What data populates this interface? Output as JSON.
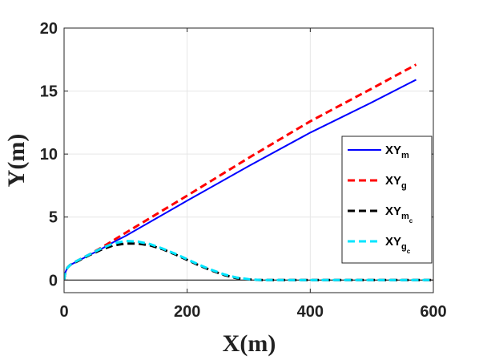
{
  "chart_data": {
    "type": "line",
    "xlabel": "X(m)",
    "ylabel": "Y(m)",
    "xlim": [
      0,
      600
    ],
    "ylim": [
      -1,
      20
    ],
    "xticks": [
      "0",
      "200",
      "400",
      "600"
    ],
    "yticks": [
      "0",
      "5",
      "10",
      "15",
      "20"
    ],
    "grid": true,
    "legend_position": "right",
    "series": [
      {
        "name": "XY_m",
        "legend": {
          "base": "XY",
          "sub": "m"
        },
        "color": "#0000ff",
        "dash": "solid",
        "x": [
          0,
          2,
          5,
          10,
          20,
          40,
          60,
          80,
          100,
          200,
          300,
          400,
          500,
          572
        ],
        "y": [
          0,
          0.6,
          0.95,
          1.2,
          1.45,
          1.95,
          2.45,
          3.0,
          3.5,
          6.3,
          9.05,
          11.7,
          14.1,
          15.9
        ]
      },
      {
        "name": "XY_g",
        "legend": {
          "base": "XY",
          "sub": "g"
        },
        "color": "#ff0000",
        "dash": "dashed",
        "x": [
          0,
          2,
          5,
          10,
          20,
          40,
          60,
          80,
          100,
          200,
          300,
          400,
          500,
          572
        ],
        "y": [
          0,
          0.6,
          0.95,
          1.2,
          1.5,
          2.0,
          2.55,
          3.15,
          3.75,
          6.7,
          9.7,
          12.6,
          15.2,
          17.1
        ]
      },
      {
        "name": "XY_m_c",
        "legend": {
          "base": "XY",
          "sub": "m",
          "subsub": "c"
        },
        "color": "#000000",
        "dash": "dashed",
        "x": [
          0,
          2,
          5,
          10,
          20,
          40,
          60,
          80,
          100,
          120,
          140,
          160,
          180,
          200,
          220,
          240,
          260,
          280,
          300,
          320,
          340,
          360,
          400,
          500,
          600
        ],
        "y": [
          0,
          0.6,
          0.95,
          1.2,
          1.45,
          1.95,
          2.4,
          2.75,
          2.9,
          2.9,
          2.75,
          2.45,
          2.05,
          1.6,
          1.15,
          0.75,
          0.4,
          0.15,
          0.05,
          0.0,
          0.0,
          0.0,
          0.0,
          0.0,
          0.0
        ]
      },
      {
        "name": "XY_g_c",
        "legend": {
          "base": "XY",
          "sub": "g",
          "subsub": "c"
        },
        "color": "#00e5ff",
        "dash": "dashed",
        "x": [
          0,
          2,
          5,
          10,
          20,
          40,
          60,
          80,
          100,
          120,
          140,
          160,
          180,
          200,
          220,
          240,
          260,
          280,
          300,
          320,
          340,
          360,
          400,
          500,
          600
        ],
        "y": [
          0,
          0.6,
          0.95,
          1.2,
          1.5,
          2.0,
          2.5,
          2.9,
          3.1,
          3.05,
          2.85,
          2.5,
          2.1,
          1.65,
          1.2,
          0.8,
          0.45,
          0.2,
          0.07,
          0.0,
          0.0,
          0.0,
          0.0,
          0.0,
          0.0
        ]
      }
    ]
  }
}
